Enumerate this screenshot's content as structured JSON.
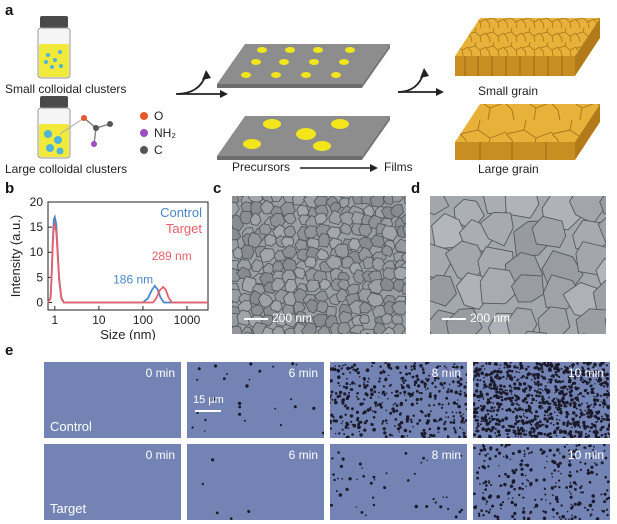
{
  "panel_labels": {
    "a": "a",
    "b": "b",
    "c": "c",
    "d": "d",
    "e": "e"
  },
  "panel_a": {
    "small_clusters": "Small colloidal clusters",
    "large_clusters": "Large colloidal clusters",
    "legend": [
      {
        "symbol": "O",
        "color": "#e4572e"
      },
      {
        "symbol": "NH₂",
        "color": "#9b4fc2"
      },
      {
        "symbol": "C",
        "color": "#555555"
      }
    ],
    "precursors": "Precursors",
    "films": "Films",
    "small_grain": "Small grain",
    "large_grain": "Large grain"
  },
  "chart_data": {
    "type": "line",
    "xlabel": "Size (nm)",
    "ylabel": "Intensity (a.u.)",
    "xscale": "log",
    "xlim": [
      0.7,
      3000
    ],
    "ylim": [
      -1.5,
      20
    ],
    "xticks": [
      "1",
      "10",
      "100",
      "1000"
    ],
    "yticks": [
      0,
      5,
      10,
      15,
      20
    ],
    "legend_position": "top-right",
    "series": [
      {
        "name": "Control",
        "color": "#4a86c8",
        "x": [
          0.7,
          0.8,
          0.85,
          0.9,
          0.95,
          1.0,
          1.08,
          1.15,
          1.25,
          1.4,
          1.6,
          3,
          10,
          60,
          100,
          130,
          160,
          186,
          215,
          250,
          300,
          1000,
          3000
        ],
        "y": [
          0,
          1,
          6,
          12.5,
          16.5,
          17,
          15.5,
          11,
          5,
          1,
          0,
          0,
          0,
          0,
          0,
          0.8,
          2.5,
          3.3,
          2.6,
          1,
          0,
          0,
          0
        ]
      },
      {
        "name": "Target",
        "color": "#e8606c",
        "x": [
          0.7,
          0.8,
          0.85,
          0.9,
          0.95,
          1.0,
          1.08,
          1.15,
          1.25,
          1.4,
          1.6,
          3,
          10,
          100,
          170,
          200,
          240,
          289,
          330,
          380,
          450,
          1000,
          3000
        ],
        "y": [
          0,
          0.8,
          5.5,
          11.5,
          15,
          15.5,
          14,
          10,
          4.5,
          0.8,
          0,
          0,
          0,
          0,
          0,
          0.8,
          2.4,
          3.1,
          2.5,
          1,
          0,
          0,
          0
        ]
      }
    ],
    "annotations": [
      {
        "text": "186 nm",
        "color": "#4a86c8"
      },
      {
        "text": "289 nm",
        "color": "#e8606c"
      }
    ]
  },
  "panel_c": {
    "scale_bar": "200 nm"
  },
  "panel_d": {
    "scale_bar": "200 nm"
  },
  "panel_e": {
    "rows": [
      {
        "label": "Control",
        "times": [
          "0 min",
          "6 min",
          "8 min",
          "10 min"
        ],
        "density": [
          0,
          0.03,
          0.45,
          1.0
        ]
      },
      {
        "label": "Target",
        "times": [
          "0 min",
          "6 min",
          "8 min",
          "10 min"
        ],
        "density": [
          0,
          0.005,
          0.05,
          0.3
        ]
      }
    ],
    "scale_bar": "15 μm"
  }
}
